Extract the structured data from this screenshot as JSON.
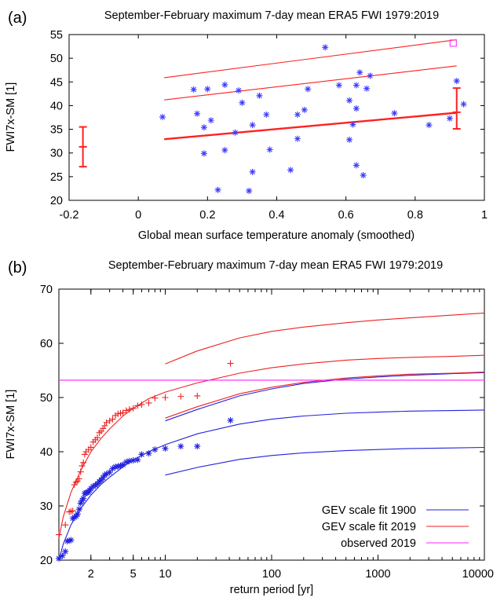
{
  "chart_data": [
    {
      "panel": "(a)",
      "type": "scatter",
      "title": "September-February maximum 7-day mean ERA5 FWI 1979:2019",
      "xlabel": "Global mean surface temperature anomaly (smoothed)",
      "ylabel": "FWI7x-SM [1]",
      "xlim": [
        -0.2,
        1
      ],
      "ylim": [
        20,
        55
      ],
      "xticks": [
        "-0.2",
        "0",
        "0.2",
        "0.4",
        "0.6",
        "0.8",
        "1"
      ],
      "yticks": [
        "20",
        "25",
        "30",
        "35",
        "40",
        "45",
        "50",
        "55"
      ],
      "colors": {
        "observations": "#3b3bff",
        "fit": "#ff2020",
        "obs2019": "#ff33ff"
      },
      "observations": [
        {
          "x": 0.07,
          "y": 37.6
        },
        {
          "x": 0.16,
          "y": 43.4
        },
        {
          "x": 0.17,
          "y": 38.3
        },
        {
          "x": 0.19,
          "y": 35.4
        },
        {
          "x": 0.19,
          "y": 29.9
        },
        {
          "x": 0.2,
          "y": 43.5
        },
        {
          "x": 0.21,
          "y": 36.9
        },
        {
          "x": 0.23,
          "y": 22.2
        },
        {
          "x": 0.25,
          "y": 30.6
        },
        {
          "x": 0.25,
          "y": 44.4
        },
        {
          "x": 0.28,
          "y": 34.3
        },
        {
          "x": 0.29,
          "y": 43.2
        },
        {
          "x": 0.3,
          "y": 40.6
        },
        {
          "x": 0.32,
          "y": 22.0
        },
        {
          "x": 0.33,
          "y": 26.0
        },
        {
          "x": 0.33,
          "y": 35.9
        },
        {
          "x": 0.35,
          "y": 42.1
        },
        {
          "x": 0.37,
          "y": 38.1
        },
        {
          "x": 0.38,
          "y": 30.7
        },
        {
          "x": 0.44,
          "y": 26.4
        },
        {
          "x": 0.46,
          "y": 38.1
        },
        {
          "x": 0.46,
          "y": 33.0
        },
        {
          "x": 0.48,
          "y": 39.1
        },
        {
          "x": 0.49,
          "y": 43.5
        },
        {
          "x": 0.54,
          "y": 52.3
        },
        {
          "x": 0.58,
          "y": 44.3
        },
        {
          "x": 0.61,
          "y": 41.1
        },
        {
          "x": 0.61,
          "y": 32.8
        },
        {
          "x": 0.62,
          "y": 36.0
        },
        {
          "x": 0.63,
          "y": 27.4
        },
        {
          "x": 0.63,
          "y": 39.4
        },
        {
          "x": 0.63,
          "y": 44.3
        },
        {
          "x": 0.64,
          "y": 47.0
        },
        {
          "x": 0.65,
          "y": 25.3
        },
        {
          "x": 0.66,
          "y": 43.6
        },
        {
          "x": 0.67,
          "y": 46.3
        },
        {
          "x": 0.74,
          "y": 38.4
        },
        {
          "x": 0.84,
          "y": 35.9
        },
        {
          "x": 0.9,
          "y": 37.3
        },
        {
          "x": 0.92,
          "y": 45.2
        },
        {
          "x": 0.94,
          "y": 40.3
        }
      ],
      "observed_2019": {
        "x": 0.91,
        "y": 53.2
      },
      "fit_mean": {
        "x": [
          0.075,
          0.92
        ],
        "y": [
          32.9,
          38.5
        ]
      },
      "fit_upper_1": {
        "x": [
          0.075,
          0.92
        ],
        "y": [
          41.2,
          48.4
        ]
      },
      "fit_upper_2": {
        "x": [
          0.075,
          0.92
        ],
        "y": [
          45.9,
          53.9
        ]
      },
      "error_bars": [
        {
          "x": -0.16,
          "center": 31.3,
          "low": 27.1,
          "high": 35.5
        },
        {
          "x": 0.92,
          "center": 38.6,
          "low": 35.1,
          "high": 43.7
        }
      ]
    },
    {
      "panel": "(b)",
      "type": "line",
      "title": "September-February maximum 7-day mean ERA5 FWI 1979:2019",
      "xlabel": "return period [yr]",
      "ylabel": "FWI7x-SM [1]",
      "xscale": "log",
      "xlim": [
        1,
        10000
      ],
      "ylim": [
        20,
        70
      ],
      "xticks": [
        {
          "value": 2,
          "label": "2"
        },
        {
          "value": 5,
          "label": "5"
        },
        {
          "value": 10,
          "label": "10"
        },
        {
          "value": 100,
          "label": "100"
        },
        {
          "value": 1000,
          "label": "1000"
        },
        {
          "value": 10000,
          "label": "10000"
        }
      ],
      "yticks": [
        "20",
        "30",
        "40",
        "50",
        "60",
        "70"
      ],
      "series": [
        {
          "name": "GEV scale fit 1900",
          "color": "#2222dd",
          "x": [
            1.0,
            1.1,
            1.3,
            1.6,
            2,
            2.5,
            3,
            4,
            5,
            7,
            10,
            20,
            50,
            100,
            200,
            500,
            1000,
            2000,
            5000,
            10000
          ],
          "y": [
            20.0,
            23.0,
            26.5,
            29.5,
            32.0,
            34.0,
            35.3,
            37.2,
            38.5,
            40.0,
            41.3,
            43.3,
            45.1,
            46.0,
            46.6,
            47.1,
            47.3,
            47.5,
            47.6,
            47.7
          ]
        },
        {
          "name": "GEV scale fit 2019",
          "color": "#ee2222",
          "x": [
            1.0,
            1.1,
            1.3,
            1.6,
            2,
            2.5,
            3,
            4,
            5,
            7,
            10,
            20,
            50,
            100,
            200,
            500,
            1000,
            2000,
            5000,
            10000
          ],
          "y": [
            24.0,
            28.0,
            32.5,
            36.5,
            40.0,
            42.5,
            44.2,
            46.6,
            48.0,
            49.8,
            51.0,
            52.7,
            54.5,
            55.5,
            56.2,
            56.9,
            57.2,
            57.4,
            57.6,
            57.8
          ]
        },
        {
          "name": "observed 2019",
          "color": "#ff22ff",
          "y_const": 53.2
        }
      ],
      "bands": [
        {
          "color": "#2222dd",
          "x": [
            10,
            20,
            50,
            100,
            200,
            500,
            1000,
            2000,
            5000,
            10000
          ],
          "y": [
            35.7,
            37.1,
            38.6,
            39.3,
            39.8,
            40.2,
            40.4,
            40.6,
            40.7,
            40.8
          ]
        },
        {
          "color": "#2222dd",
          "x": [
            10,
            20,
            50,
            100,
            200,
            500,
            1000,
            2000,
            5000,
            10000
          ],
          "y": [
            45.7,
            47.8,
            50.3,
            51.6,
            52.6,
            53.4,
            53.8,
            54.1,
            54.4,
            54.6
          ]
        },
        {
          "color": "#ee2222",
          "x": [
            10,
            20,
            50,
            100,
            200,
            500,
            1000,
            2000,
            5000,
            10000
          ],
          "y": [
            46.2,
            48.3,
            50.7,
            51.9,
            52.8,
            53.6,
            54.0,
            54.3,
            54.5,
            54.7
          ]
        },
        {
          "color": "#ee2222",
          "x": [
            10,
            20,
            50,
            100,
            200,
            500,
            1000,
            2000,
            5000,
            10000
          ],
          "y": [
            56.2,
            58.6,
            61.0,
            62.2,
            63.0,
            63.8,
            64.3,
            64.7,
            65.2,
            65.6
          ]
        }
      ],
      "points_1900": {
        "color": "#2222dd",
        "x": [
          1.0,
          1.08,
          1.15,
          1.2,
          1.25,
          1.3,
          1.35,
          1.4,
          1.45,
          1.5,
          1.55,
          1.6,
          1.65,
          1.7,
          1.75,
          1.8,
          1.85,
          1.9,
          1.95,
          2.0,
          2.1,
          2.2,
          2.3,
          2.4,
          2.5,
          2.6,
          2.7,
          2.8,
          3.0,
          3.2,
          3.4,
          3.6,
          3.8,
          4.0,
          4.3,
          4.6,
          5.0,
          5.5,
          6.0,
          7.0,
          8.0,
          10.0,
          14.0,
          20.0,
          41.0
        ],
        "y": [
          20.3,
          20.8,
          21.6,
          23.5,
          23.6,
          23.7,
          27.7,
          27.9,
          28.1,
          28.5,
          29.4,
          30.5,
          31.0,
          31.4,
          32.3,
          32.4,
          32.5,
          32.6,
          32.9,
          33.2,
          33.6,
          33.8,
          34.1,
          34.5,
          34.8,
          35.2,
          35.7,
          35.9,
          36.2,
          36.9,
          37.2,
          37.3,
          37.4,
          37.6,
          38.1,
          38.3,
          38.4,
          38.5,
          39.5,
          39.7,
          40.4,
          40.6,
          41.0,
          41.0,
          45.8
        ]
      },
      "points_2019": {
        "color": "#ee2222",
        "x": [
          1.0,
          1.15,
          1.25,
          1.3,
          1.35,
          1.4,
          1.45,
          1.5,
          1.55,
          1.6,
          1.65,
          1.7,
          1.75,
          1.8,
          1.9,
          2.0,
          2.1,
          2.2,
          2.3,
          2.4,
          2.5,
          2.6,
          2.7,
          2.8,
          3.0,
          3.2,
          3.4,
          3.6,
          3.8,
          4.0,
          4.3,
          4.6,
          5.0,
          5.5,
          6.0,
          7.0,
          8.0,
          10.0,
          14.0,
          20.0,
          41.0
        ],
        "y": [
          24.7,
          26.5,
          28.9,
          29.0,
          29.1,
          33.9,
          34.4,
          34.6,
          35.0,
          36.3,
          37.4,
          38.0,
          39.5,
          40.0,
          40.4,
          40.8,
          41.8,
          42.2,
          42.6,
          43.5,
          43.8,
          44.3,
          44.8,
          45.4,
          45.7,
          46.0,
          46.7,
          47.0,
          47.1,
          47.2,
          47.6,
          47.8,
          48.0,
          48.5,
          48.7,
          49.0,
          49.9,
          50.0,
          50.2,
          50.3,
          56.3
        ]
      }
    }
  ]
}
